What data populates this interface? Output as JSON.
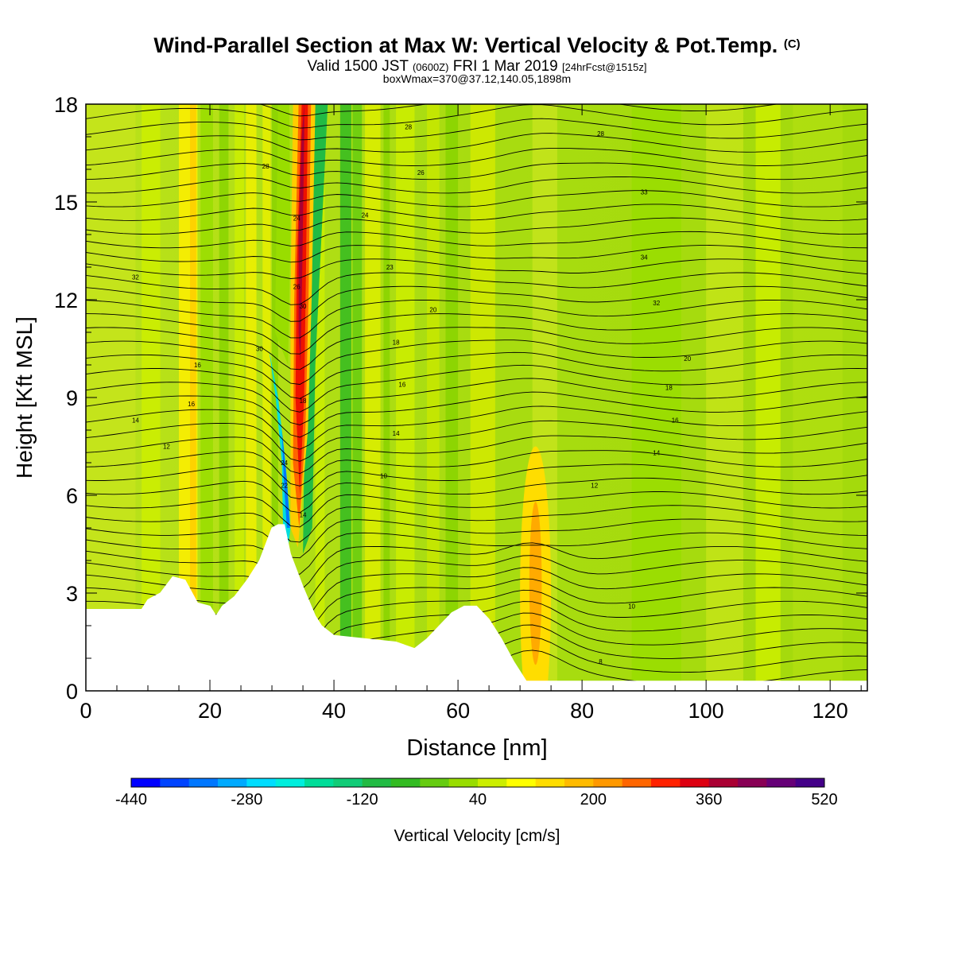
{
  "header": {
    "title": "Wind-Parallel Section at Max W: Vertical Velocity & Pot.Temp.",
    "title_mark": "(C)",
    "valid_prefix": "Valid 1500 JST",
    "valid_utc": "(0600Z)",
    "valid_date": "FRI 1 Mar 2019",
    "forecast_info": "[24hrFcst@1515z]",
    "box_info": "boxWmax=370@37.12,140.05,1898m"
  },
  "colorbar": {
    "label": "Vertical Velocity [cm/s]",
    "tick_labels": [
      "-440",
      "-280",
      "-120",
      "40",
      "200",
      "360",
      "520"
    ],
    "colors": [
      "#0000ff",
      "#0044ff",
      "#0077ff",
      "#00aaff",
      "#00ddff",
      "#00eedd",
      "#00dd99",
      "#11cc77",
      "#22bb44",
      "#33bb22",
      "#66cc11",
      "#99dd00",
      "#ccee00",
      "#ffff00",
      "#ffdd00",
      "#ffbb00",
      "#ff9900",
      "#ff6600",
      "#ff2200",
      "#dd0011",
      "#aa0033",
      "#880055",
      "#660077",
      "#440088"
    ]
  },
  "chart_data": {
    "type": "heatmap",
    "title": "Wind-Parallel Section at Max W: Vertical Velocity & Pot.Temp.",
    "xlabel": "Distance [nm]",
    "ylabel": "Height [Kft MSL]",
    "xlim": [
      0,
      126
    ],
    "ylim": [
      0,
      18
    ],
    "xticks": [
      0,
      20,
      40,
      60,
      80,
      100,
      120
    ],
    "yticks": [
      0,
      3,
      6,
      9,
      12,
      15,
      18
    ],
    "colorbar_range": [
      -440,
      520
    ],
    "colorbar_step": 40,
    "max_updraft_cm_s": 370,
    "terrain": [
      [
        0,
        2.5
      ],
      [
        9,
        2.5
      ],
      [
        10,
        2.8
      ],
      [
        12,
        3.0
      ],
      [
        14,
        3.5
      ],
      [
        16,
        3.4
      ],
      [
        18,
        2.7
      ],
      [
        20,
        2.6
      ],
      [
        21,
        2.3
      ],
      [
        22,
        2.6
      ],
      [
        24,
        2.9
      ],
      [
        26,
        3.4
      ],
      [
        28,
        4.0
      ],
      [
        29,
        4.5
      ],
      [
        30,
        5.0
      ],
      [
        31,
        5.1
      ],
      [
        32,
        5.1
      ],
      [
        33,
        4.2
      ],
      [
        35,
        3.2
      ],
      [
        37,
        2.3
      ],
      [
        38,
        2.0
      ],
      [
        40,
        1.7
      ],
      [
        45,
        1.6
      ],
      [
        50,
        1.5
      ],
      [
        53,
        1.3
      ],
      [
        55,
        1.6
      ],
      [
        57,
        2.0
      ],
      [
        59,
        2.4
      ],
      [
        61,
        2.6
      ],
      [
        63,
        2.6
      ],
      [
        65,
        2.2
      ],
      [
        67,
        1.6
      ],
      [
        69,
        0.9
      ],
      [
        70,
        0.6
      ],
      [
        71,
        0.3
      ],
      [
        126,
        0.3
      ]
    ],
    "updraft_band": {
      "peak_cm_s": 370,
      "x_range_nm": [
        33,
        36
      ],
      "height_range_kft": [
        4,
        18
      ]
    },
    "downdraft_band": {
      "min_cm_s": -440,
      "x_range_nm": [
        30,
        33
      ],
      "height_range_kft": [
        4.5,
        10
      ]
    },
    "pot_temp_labels": [
      {
        "x": 8,
        "y": 8.3,
        "label": "14"
      },
      {
        "x": 13,
        "y": 7.5,
        "label": "12"
      },
      {
        "x": 17,
        "y": 8.8,
        "label": "16"
      },
      {
        "x": 18,
        "y": 10.0,
        "label": "16"
      },
      {
        "x": 28,
        "y": 10.5,
        "label": "30"
      },
      {
        "x": 29,
        "y": 16.1,
        "label": "28"
      },
      {
        "x": 8,
        "y": 12.7,
        "label": "32"
      },
      {
        "x": 32,
        "y": 6.3,
        "label": "22"
      },
      {
        "x": 32,
        "y": 7.0,
        "label": "24"
      },
      {
        "x": 34,
        "y": 14.5,
        "label": "24"
      },
      {
        "x": 34,
        "y": 12.4,
        "label": "26"
      },
      {
        "x": 35,
        "y": 11.8,
        "label": "30"
      },
      {
        "x": 35,
        "y": 8.9,
        "label": "18"
      },
      {
        "x": 35,
        "y": 5.4,
        "label": "14"
      },
      {
        "x": 45,
        "y": 14.6,
        "label": "24"
      },
      {
        "x": 49,
        "y": 13.0,
        "label": "23"
      },
      {
        "x": 52,
        "y": 17.3,
        "label": "28"
      },
      {
        "x": 54,
        "y": 15.9,
        "label": "26"
      },
      {
        "x": 56,
        "y": 11.7,
        "label": "20"
      },
      {
        "x": 50,
        "y": 10.7,
        "label": "18"
      },
      {
        "x": 51,
        "y": 9.4,
        "label": "16"
      },
      {
        "x": 50,
        "y": 7.9,
        "label": "14"
      },
      {
        "x": 48,
        "y": 6.6,
        "label": "10"
      },
      {
        "x": 83,
        "y": 17.1,
        "label": "28"
      },
      {
        "x": 90,
        "y": 15.3,
        "label": "33"
      },
      {
        "x": 90,
        "y": 13.3,
        "label": "34"
      },
      {
        "x": 92,
        "y": 11.9,
        "label": "32"
      },
      {
        "x": 97,
        "y": 10.2,
        "label": "20"
      },
      {
        "x": 94,
        "y": 9.3,
        "label": "18"
      },
      {
        "x": 95,
        "y": 8.3,
        "label": "16"
      },
      {
        "x": 92,
        "y": 7.3,
        "label": "14"
      },
      {
        "x": 82,
        "y": 6.3,
        "label": "12"
      },
      {
        "x": 88,
        "y": 2.6,
        "label": "10"
      },
      {
        "x": 83,
        "y": 0.9,
        "label": "8"
      }
    ]
  }
}
